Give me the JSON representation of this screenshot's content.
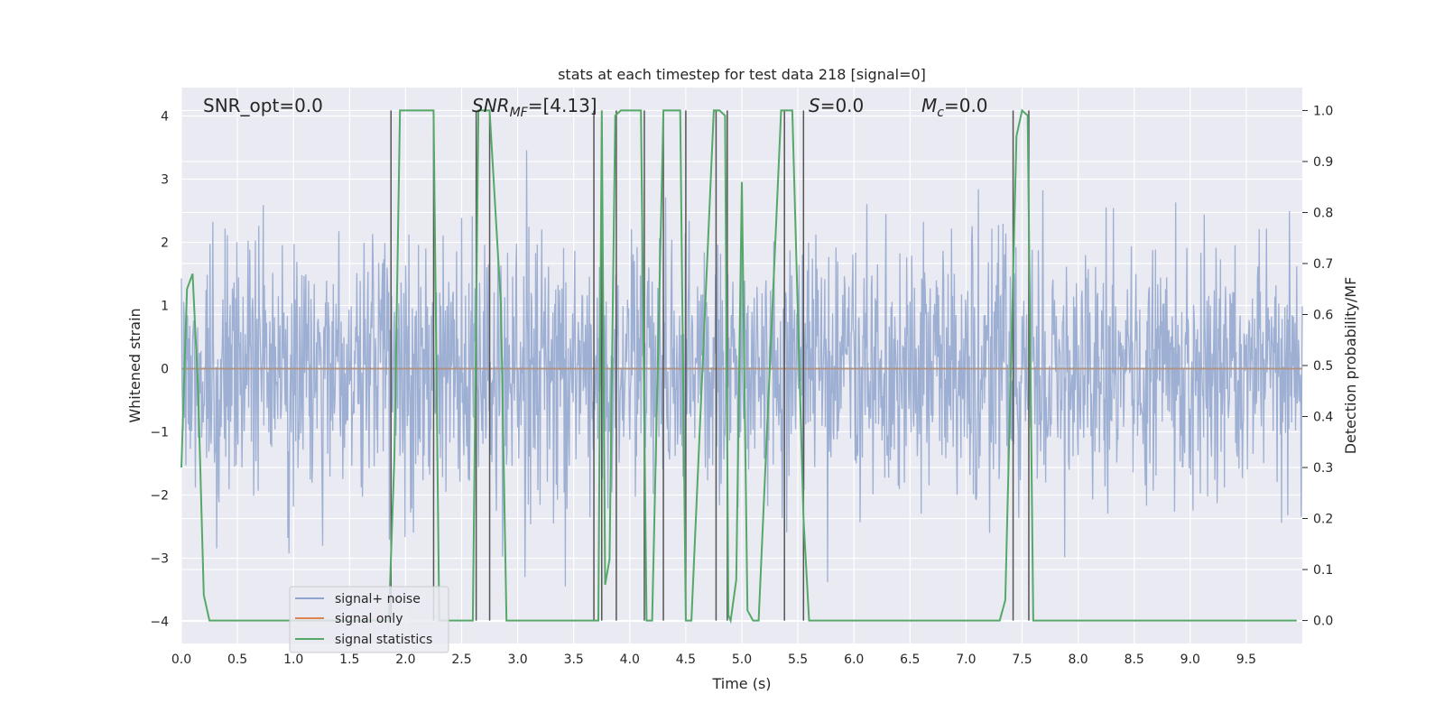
{
  "chart_data": {
    "type": "line",
    "title": "stats at each timestep for test data 218 [signal=0]",
    "xlabel": "Time (s)",
    "ylabel": "Whitened strain",
    "ylabel_right": "Detection probability/MF",
    "xlim": [
      0.0,
      10.0
    ],
    "ylim": [
      -4.35,
      4.45
    ],
    "ylim_right": [
      -0.045,
      1.045
    ],
    "x_ticks": [
      0.0,
      0.5,
      1.0,
      1.5,
      2.0,
      2.5,
      3.0,
      3.5,
      4.0,
      4.5,
      5.0,
      5.5,
      6.0,
      6.5,
      7.0,
      7.5,
      8.0,
      8.5,
      9.0,
      9.5
    ],
    "x_tick_labels": [
      "0.0",
      "0.5",
      "1.0",
      "1.5",
      "2.0",
      "2.5",
      "3.0",
      "3.5",
      "4.0",
      "4.5",
      "5.0",
      "5.5",
      "6.0",
      "6.5",
      "7.0",
      "7.5",
      "8.0",
      "8.5",
      "9.0",
      "9.5"
    ],
    "y_ticks": [
      4,
      3,
      2,
      1,
      0,
      -1,
      -2,
      -3,
      -4
    ],
    "y_tick_labels": [
      "4",
      "3",
      "2",
      "1",
      "0",
      "−1",
      "−2",
      "−3",
      "−4"
    ],
    "y_right_ticks": [
      1.0,
      0.9,
      0.8,
      0.7,
      0.6,
      0.5,
      0.4,
      0.3,
      0.2,
      0.1,
      0.0
    ],
    "y_right_tick_labels": [
      "1.0",
      "0.9",
      "0.8",
      "0.7",
      "0.6",
      "0.5",
      "0.4",
      "0.3",
      "0.2",
      "0.1",
      "0.0"
    ],
    "grid": true,
    "annotations": {
      "snr_opt": "SNR_opt=0.0",
      "snr_mf_prefix": "SNR",
      "snr_mf_sub": "MF",
      "snr_mf_value": "=[4.13]",
      "s_label": "S",
      "s_value": "=0.0",
      "mc_label": "M",
      "mc_sub": "c",
      "mc_value": "=0.0"
    },
    "legend": {
      "placement": "lower-left",
      "entries": [
        "signal+ noise",
        "signal only",
        "signal statistics"
      ]
    },
    "series": [
      {
        "name": "signal+ noise",
        "axis": "left",
        "color": "#8fa4cc",
        "description_noise": true,
        "sample_rate_hz": 200,
        "std": 1.0,
        "seed": 218
      },
      {
        "name": "signal only",
        "axis": "left",
        "color": "#dd8452",
        "x": [
          0.0,
          10.0
        ],
        "y": [
          0.0,
          0.0
        ]
      },
      {
        "name": "signal statistics",
        "axis": "right",
        "color": "#55a868",
        "x": [
          0.0,
          0.05,
          0.1,
          0.15,
          0.2,
          0.25,
          1.85,
          1.9,
          1.95,
          2.25,
          2.3,
          2.6,
          2.65,
          2.75,
          2.85,
          2.9,
          3.7,
          3.72,
          3.75,
          3.78,
          3.82,
          3.87,
          3.92,
          4.1,
          4.15,
          4.18,
          4.2,
          4.3,
          4.35,
          4.45,
          4.5,
          4.55,
          4.75,
          4.8,
          4.85,
          4.88,
          4.9,
          4.95,
          5.0,
          5.05,
          5.1,
          5.15,
          5.35,
          5.4,
          5.45,
          5.55,
          5.6,
          5.65,
          7.3,
          7.35,
          7.45,
          7.5,
          7.55,
          7.6,
          7.65,
          9.95
        ],
        "y": [
          0.3,
          0.65,
          0.68,
          0.45,
          0.05,
          0.0,
          0.0,
          0.32,
          1.0,
          1.0,
          0.0,
          0.0,
          1.0,
          1.0,
          0.62,
          0.0,
          0.0,
          0.0,
          1.0,
          0.07,
          0.12,
          0.99,
          1.0,
          1.0,
          0.0,
          0.0,
          0.0,
          1.0,
          1.0,
          1.0,
          0.0,
          0.0,
          1.0,
          1.0,
          0.99,
          0.01,
          0.0,
          0.08,
          0.86,
          0.02,
          0.0,
          0.0,
          1.0,
          1.0,
          1.0,
          0.2,
          0.0,
          0.0,
          0.0,
          0.04,
          0.95,
          1.0,
          0.99,
          0.0,
          0.0,
          0.0
        ]
      },
      {
        "name": "",
        "axis": "right",
        "color": "#555555",
        "type": "vlines",
        "x": [
          1.87,
          2.25,
          2.63,
          2.75,
          3.68,
          3.75,
          3.88,
          4.13,
          4.3,
          4.5,
          4.77,
          4.87,
          5.38,
          5.55,
          7.42,
          7.56
        ]
      }
    ]
  }
}
